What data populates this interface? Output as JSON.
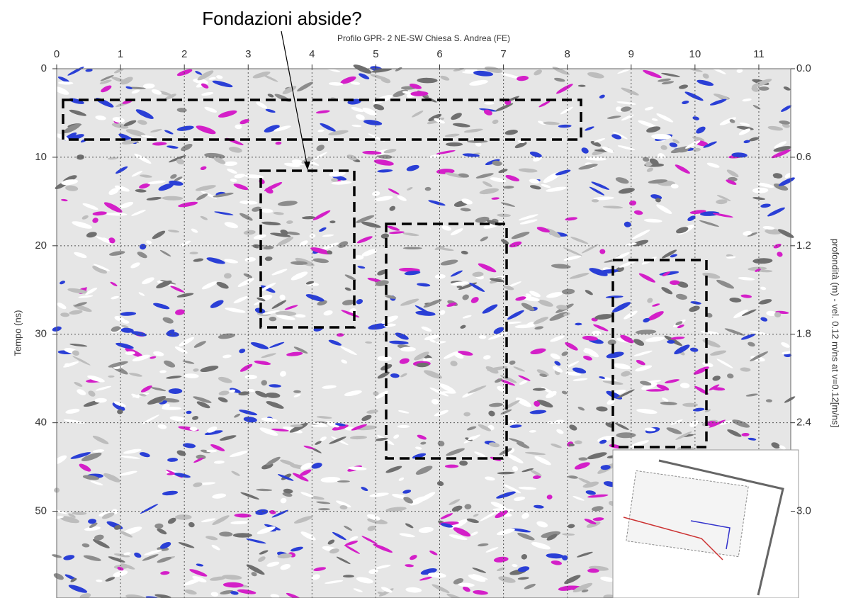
{
  "chart_data": {
    "type": "radargram",
    "title": "Profilo GPR- 2 NE-SW Chiesa S. Andrea (FE)",
    "annotation": "Fondazioni abside?",
    "ylabel": "Tempo (ns)",
    "y2label": "profondità (m) - vel. 0.12 m/ns at v=0.12[m/ns]",
    "xlim": [
      0,
      11.5
    ],
    "xticks": [
      0,
      1,
      2,
      3,
      4,
      5,
      6,
      7,
      8,
      9,
      10,
      11
    ],
    "ylim": [
      0,
      59.8
    ],
    "yticks": [
      0,
      10,
      20,
      30,
      40,
      50
    ],
    "y2lim": [
      0,
      3.588
    ],
    "y2ticks": [
      {
        "value": 0,
        "label": "0.0"
      },
      0.6,
      1.2,
      1.8,
      2.4,
      {
        "value": 3,
        "label": "3.0"
      }
    ],
    "grid": true
  }
}
